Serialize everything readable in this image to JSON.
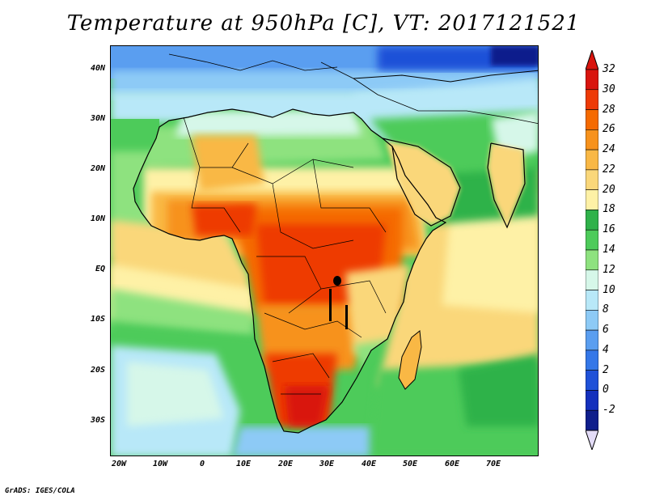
{
  "title": "Temperature at 950hPa [C], VT: 2017121521",
  "footer": "GrADS: IGES/COLA",
  "y_axis": {
    "labels": [
      "40N",
      "30N",
      "20N",
      "10N",
      "EQ",
      "10S",
      "20S",
      "30S"
    ]
  },
  "x_axis": {
    "labels": [
      "20W",
      "10W",
      "0",
      "10E",
      "20E",
      "30E",
      "40E",
      "50E",
      "60E",
      "70E"
    ]
  },
  "colorbar": {
    "labels": [
      "32",
      "30",
      "28",
      "26",
      "24",
      "22",
      "20",
      "18",
      "16",
      "14",
      "12",
      "10",
      "8",
      "6",
      "4",
      "2",
      "0",
      "-2"
    ],
    "colors": [
      "#d9140e",
      "#ee3a06",
      "#f56a00",
      "#f7921c",
      "#f9b845",
      "#fad77a",
      "#fef1a6",
      "#2fb24a",
      "#4dcb5a",
      "#8ee27f",
      "#d6f7e9",
      "#b8e8f8",
      "#8dcaf6",
      "#5a9ef0",
      "#3477e8",
      "#1f51d8",
      "#1430bd",
      "#0f1e8c"
    ],
    "arrow_top_color": "#d9140e",
    "arrow_bottom_color": "#e3dcf7"
  }
}
